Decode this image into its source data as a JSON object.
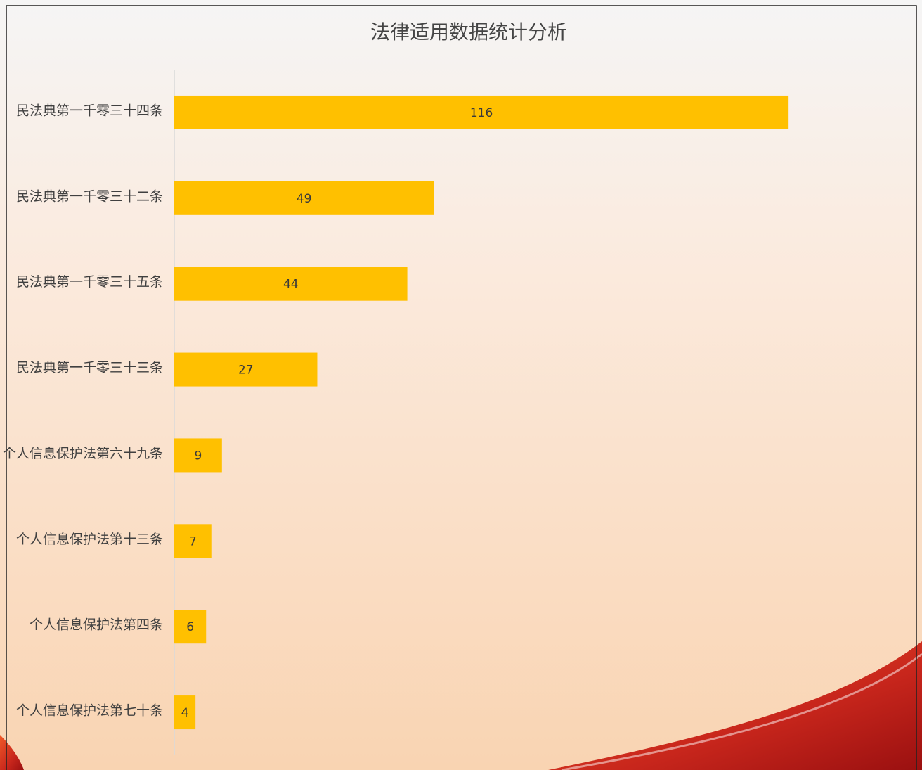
{
  "chart_data": {
    "type": "barh",
    "title": "法律适用数据统计分析",
    "categories": [
      "民法典第一千零三十四条",
      "民法典第一千零三十二条",
      "民法典第一千零三十五条",
      "民法典第一千零三十三条",
      "个人信息保护法第六十九条",
      "个人信息保护法第十三条",
      "个人信息保护法第四条",
      "个人信息保护法第七十条"
    ],
    "values": [
      116,
      49,
      44,
      27,
      9,
      7,
      6,
      4
    ],
    "color": "#ffc000",
    "xlim": [
      0,
      140
    ]
  }
}
